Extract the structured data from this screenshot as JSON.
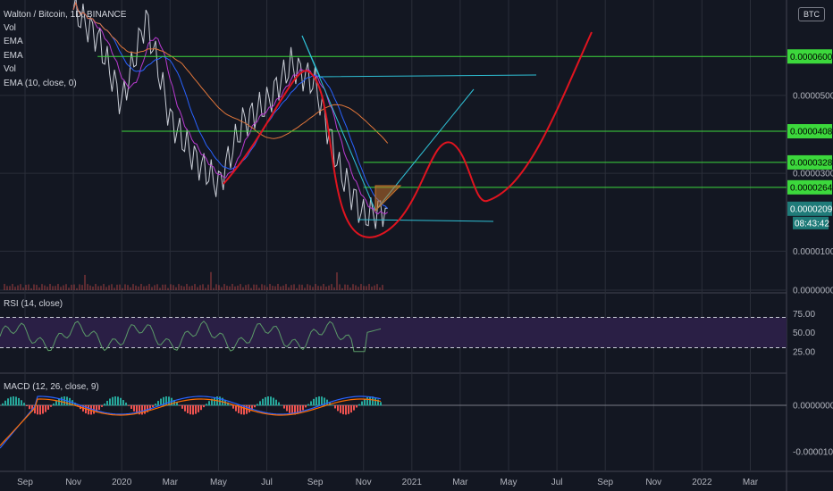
{
  "header": {
    "pair_title": "Walton / Bitcoin, 1D, BINANCE",
    "indicators": [
      "Vol",
      "EMA",
      "EMA",
      "Vol",
      "EMA (10, close, 0)"
    ],
    "currency_badge": "BTC"
  },
  "timer": "08:43:42",
  "colors": {
    "background": "#131722",
    "grid": "#2a2e39",
    "axis_text": "#b2b5be",
    "green_line": "#3cd83c",
    "cyan_line": "#2fc1d6",
    "red_projection": "#e0141f",
    "rsi_band": "#2a1f45",
    "current_price": "#1f7b79"
  },
  "chart_data": [
    {
      "type": "line",
      "panel": "price",
      "y_tick_labels": [
        "0.0000500",
        "0.0000300",
        "0.0000100",
        "0.0000000"
      ],
      "ylim": [
        0,
        7.45e-05
      ],
      "x_tick_labels": [
        "Sep",
        "Nov",
        "2020",
        "Mar",
        "May",
        "Jul",
        "Sep",
        "Nov",
        "2021",
        "Mar",
        "May",
        "Jul",
        "Sep",
        "Nov",
        "2022",
        "Mar"
      ],
      "horizontal_levels": [
        {
          "label": "0.0000600",
          "value": 6e-05,
          "from": "Dec 2019",
          "to": "Apr 2022"
        },
        {
          "label": "0.0000408",
          "value": 4.08e-05,
          "from": "Jan 2020",
          "to": "Apr 2022"
        },
        {
          "label": "0.0000328",
          "value": 3.28e-05,
          "from": "Nov 2020",
          "to": "Apr 2022"
        },
        {
          "label": "0.0000264",
          "value": 2.64e-05,
          "from": "Nov 2020",
          "to": "Apr 2022"
        }
      ],
      "current_price": {
        "label": "0.0000209",
        "value": 2.09e-05
      },
      "price_series": [
        {
          "date": "Nov 2019",
          "value": 7.2e-05
        },
        {
          "date": "Dec 2019",
          "value": 6.5e-05
        },
        {
          "date": "Jan 2020",
          "value": 4.8e-05
        },
        {
          "date": "Feb 2020",
          "value": 7e-05
        },
        {
          "date": "Mar 2020",
          "value": 4.4e-05
        },
        {
          "date": "Apr 2020",
          "value": 3.4e-05
        },
        {
          "date": "May 2020",
          "value": 2.7e-05
        },
        {
          "date": "Jun 2020",
          "value": 4.3e-05
        },
        {
          "date": "Jul 2020",
          "value": 4.8e-05
        },
        {
          "date": "Aug 2020",
          "value": 5.8e-05
        },
        {
          "date": "Sep 2020",
          "value": 5.3e-05
        },
        {
          "date": "Oct 2020",
          "value": 3.1e-05
        },
        {
          "date": "Nov 2020",
          "value": 1.9e-05
        },
        {
          "date": "Dec 2020",
          "value": 2.1e-05
        }
      ]
    },
    {
      "type": "line",
      "panel": "rsi",
      "title": "RSI (14, close)",
      "y_tick_labels": [
        "75.00",
        "50.00",
        "25.00"
      ],
      "ylim": [
        0,
        100
      ],
      "band": [
        30,
        70
      ]
    },
    {
      "type": "bar",
      "panel": "macd",
      "title": "MACD (12, 26, close, 9)",
      "y_tick_labels": [
        "0.0000000",
        "-0.0000100"
      ]
    }
  ]
}
